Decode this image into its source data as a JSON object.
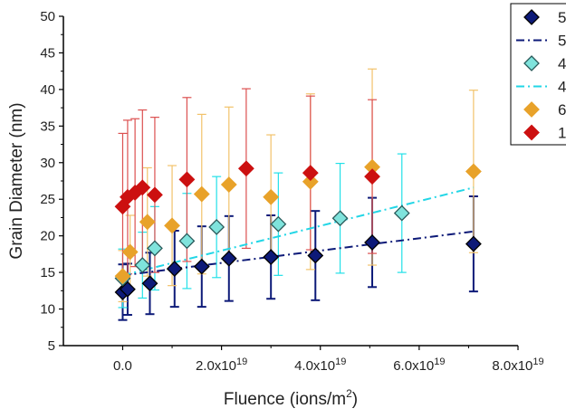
{
  "chart_data": {
    "type": "scatter",
    "title": "",
    "xlabel": "Fluence (ions/m",
    "xlabel_sup": "2",
    "xlabel_end": ")",
    "ylabel": "Grain Diameter (nm)",
    "xlim": [
      -1.2e+19,
      8e+19
    ],
    "ylim": [
      5,
      50
    ],
    "x_ticks": [
      0,
      2e+19,
      4e+19,
      6e+19,
      8e+19
    ],
    "x_tick_labels": [
      {
        "mant": "0.0",
        "exp": ""
      },
      {
        "mant": "2.0x10",
        "exp": "19"
      },
      {
        "mant": "4.0x10",
        "exp": "19"
      },
      {
        "mant": "6.0x10",
        "exp": "19"
      },
      {
        "mant": "8.0x10",
        "exp": "19"
      }
    ],
    "y_ticks": [
      5,
      10,
      15,
      20,
      25,
      30,
      35,
      40,
      45,
      50
    ],
    "grid": false,
    "legend": {
      "placement": "top-right (clipped)",
      "entries": [
        {
          "label": "5",
          "kind": "marker",
          "color": "#0d1a78",
          "edge": "#000000"
        },
        {
          "label": "5",
          "kind": "line",
          "color": "#0d1a78"
        },
        {
          "label": "4",
          "kind": "marker",
          "color": "#7fe3dc",
          "edge": "#2a5a5a"
        },
        {
          "label": "4",
          "kind": "line",
          "color": "#22d6e6"
        },
        {
          "label": "6",
          "kind": "marker",
          "color": "#e8a22a",
          "edge": "#e8a22a"
        },
        {
          "label": "1",
          "kind": "marker",
          "color": "#cc1010",
          "edge": "#cc1010"
        }
      ]
    },
    "series": [
      {
        "marker_color": "#0d1a78",
        "marker_edge": "#000000",
        "error_color": "#0d1a78",
        "points": [
          {
            "x": 0.0,
            "y": 12.3,
            "err": 3.8
          },
          {
            "x": 1e+18,
            "y": 12.7,
            "err": 3.5
          },
          {
            "x": 5.5e+18,
            "y": 13.5,
            "err": 4.2
          },
          {
            "x": 1.05e+19,
            "y": 15.5,
            "err": 5.2
          },
          {
            "x": 1.6e+19,
            "y": 15.8,
            "err": 5.5
          },
          {
            "x": 2.15e+19,
            "y": 16.9,
            "err": 5.8
          },
          {
            "x": 3e+19,
            "y": 17.1,
            "err": 5.7
          },
          {
            "x": 3.9e+19,
            "y": 17.3,
            "err": 6.1
          },
          {
            "x": 5.05e+19,
            "y": 19.1,
            "err": 6.1
          },
          {
            "x": 7.1e+19,
            "y": 18.9,
            "err": 6.5
          }
        ]
      },
      {
        "marker_color": "#7fe3dc",
        "marker_edge": "#2a5a5a",
        "error_color": "#22e0e8",
        "points": [
          {
            "x": 0.0,
            "y": 14.2,
            "err": 4.0
          },
          {
            "x": 4e+18,
            "y": 16.0,
            "err": 4.5
          },
          {
            "x": 6.5e+18,
            "y": 18.3,
            "err": 5.7
          },
          {
            "x": 1.3e+19,
            "y": 19.3,
            "err": 6.5
          },
          {
            "x": 1.9e+19,
            "y": 21.2,
            "err": 6.9
          },
          {
            "x": 3.15e+19,
            "y": 21.6,
            "err": 7.0
          },
          {
            "x": 4.4e+19,
            "y": 22.4,
            "err": 7.5
          },
          {
            "x": 5.65e+19,
            "y": 23.1,
            "err": 8.1
          }
        ]
      },
      {
        "marker_color": "#e8a22a",
        "marker_edge": "#e8a22a",
        "error_color": "#f2c26a",
        "points": [
          {
            "x": 0.0,
            "y": 14.5,
            "err": 3.5
          },
          {
            "x": 1.5e+18,
            "y": 17.8,
            "err": 5.0
          },
          {
            "x": 5e+18,
            "y": 21.9,
            "err": 7.4
          },
          {
            "x": 1e+19,
            "y": 21.4,
            "err": 8.2
          },
          {
            "x": 1.6e+19,
            "y": 25.7,
            "err": 10.9
          },
          {
            "x": 2.15e+19,
            "y": 27.0,
            "err": 10.6
          },
          {
            "x": 3e+19,
            "y": 25.3,
            "err": 8.5
          },
          {
            "x": 3.8e+19,
            "y": 27.4,
            "err": 12.0
          },
          {
            "x": 5.05e+19,
            "y": 29.4,
            "err": 13.4
          },
          {
            "x": 7.1e+19,
            "y": 28.8,
            "err": 11.1
          }
        ]
      },
      {
        "marker_color": "#cc1010",
        "marker_edge": "#cc1010",
        "error_color": "#dc5050",
        "points": [
          {
            "x": 0.0,
            "y": 24.0,
            "err": 10.0
          },
          {
            "x": 1e+18,
            "y": 25.3,
            "err": 10.5
          },
          {
            "x": 2.5e+18,
            "y": 25.9,
            "err": 10.1
          },
          {
            "x": 4e+18,
            "y": 26.6,
            "err": 10.6
          },
          {
            "x": 6.5e+18,
            "y": 25.6,
            "err": 10.6
          },
          {
            "x": 1.3e+19,
            "y": 27.7,
            "err": 11.2
          },
          {
            "x": 2.5e+19,
            "y": 29.2,
            "err": 10.9
          },
          {
            "x": 3.8e+19,
            "y": 28.6,
            "err": 10.5
          },
          {
            "x": 5.05e+19,
            "y": 28.1,
            "err": 10.5
          }
        ]
      }
    ],
    "fit_lines": [
      {
        "color": "#0d1a78",
        "x": [
          0.0,
          7.1e+19
        ],
        "y": [
          14.6,
          20.6
        ]
      },
      {
        "color": "#22d6e6",
        "x": [
          0.0,
          7.1e+19
        ],
        "y": [
          14.6,
          26.6
        ]
      }
    ]
  }
}
